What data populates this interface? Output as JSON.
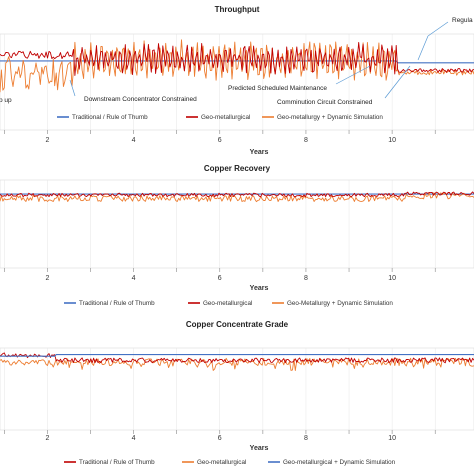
{
  "chart_data": [
    {
      "type": "line",
      "title": "Throughput",
      "xlabel": "Years",
      "x_ticks": [
        "2",
        "4",
        "6",
        "8",
        "10"
      ],
      "xlim": [
        0.9,
        11.9
      ],
      "ylim": [
        0,
        100
      ],
      "series": [
        {
          "name": "Traditional / Rule of Thumb",
          "color": "#4472C4"
        },
        {
          "name": "Geo-metallurgical",
          "color": "#C00000"
        },
        {
          "name": "Geo-metallurgy + Dynamic Simulation",
          "color": "#ED7D31"
        }
      ],
      "annotations": [
        "Regula",
        "p up",
        "Downstream Concentrator Constrained",
        "Predicted Scheduled Maintenance",
        "Comminution Circuit Constrained"
      ]
    },
    {
      "type": "line",
      "title": "Copper Recovery",
      "xlabel": "Years",
      "x_ticks": [
        "2",
        "4",
        "6",
        "8",
        "10"
      ],
      "xlim": [
        0.9,
        11.9
      ],
      "ylim": [
        0,
        100
      ],
      "series": [
        {
          "name": "Traditional / Rule of Thumb",
          "color": "#4472C4"
        },
        {
          "name": "Geo-metallurgical",
          "color": "#C00000"
        },
        {
          "name": "Geo-Metallurgy + Dynamic Simulation",
          "color": "#ED7D31"
        }
      ]
    },
    {
      "type": "line",
      "title": "Copper Concentrate Grade",
      "xlabel": "Years",
      "x_ticks": [
        "2",
        "4",
        "6",
        "8",
        "10"
      ],
      "xlim": [
        0.9,
        11.9
      ],
      "ylim": [
        0,
        100
      ],
      "series": [
        {
          "name": "Traditional / Rule of Thumb",
          "color": "#C00000"
        },
        {
          "name": "Geo-metallurgical",
          "color": "#ED7D31"
        },
        {
          "name": "Geo-metallurgical + Dynamic Simulation",
          "color": "#4472C4"
        }
      ]
    }
  ]
}
